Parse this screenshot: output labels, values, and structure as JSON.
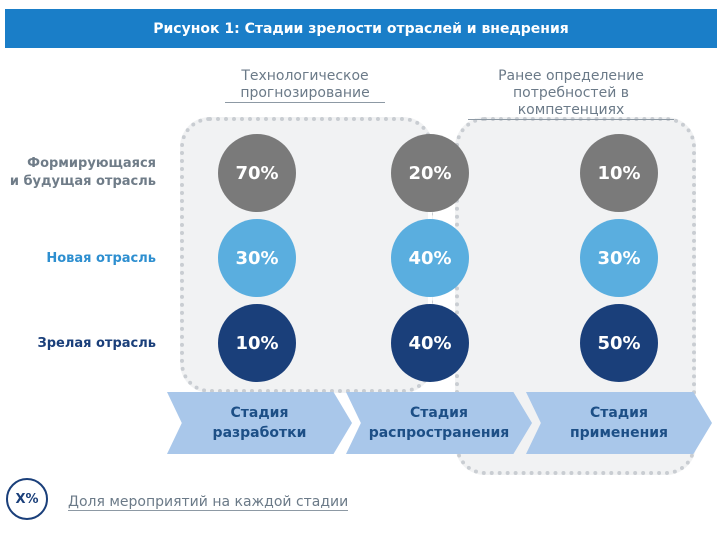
{
  "title": "Рисунок 1: Стадии зрелости отраслей и внедрения",
  "groups": [
    {
      "line1": "Технологическое",
      "line2": "прогнозирование"
    },
    {
      "line1": "Ранее определение",
      "line2": "потребностей в компетенциях"
    }
  ],
  "rows": [
    {
      "line1": "Формирующаяся",
      "line2": "и будущая отрасль",
      "color": "#7a7a7a",
      "values": [
        "70%",
        "20%",
        "10%"
      ]
    },
    {
      "line1": "Новая отрасль",
      "line2": "",
      "color": "#5aaedf",
      "values": [
        "30%",
        "40%",
        "30%"
      ]
    },
    {
      "line1": "Зрелая отрасль",
      "line2": "",
      "color": "#1a3f7a",
      "values": [
        "10%",
        "40%",
        "50%"
      ]
    }
  ],
  "stages": [
    {
      "line1": "Стадия",
      "line2": "разработки"
    },
    {
      "line1": "Стадия",
      "line2": "распространения"
    },
    {
      "line1": "Стадия",
      "line2": "применения"
    }
  ],
  "legend": {
    "symbol": "X%",
    "text": "Доля мероприятий на каждой стадии"
  },
  "colors": {
    "title_bg": "#1a7ec8",
    "stage_bg": "#a9c7ea",
    "gray_circle": "#7a7a7a",
    "light_blue_circle": "#5aaedf",
    "dark_blue_circle": "#1a3f7a"
  }
}
